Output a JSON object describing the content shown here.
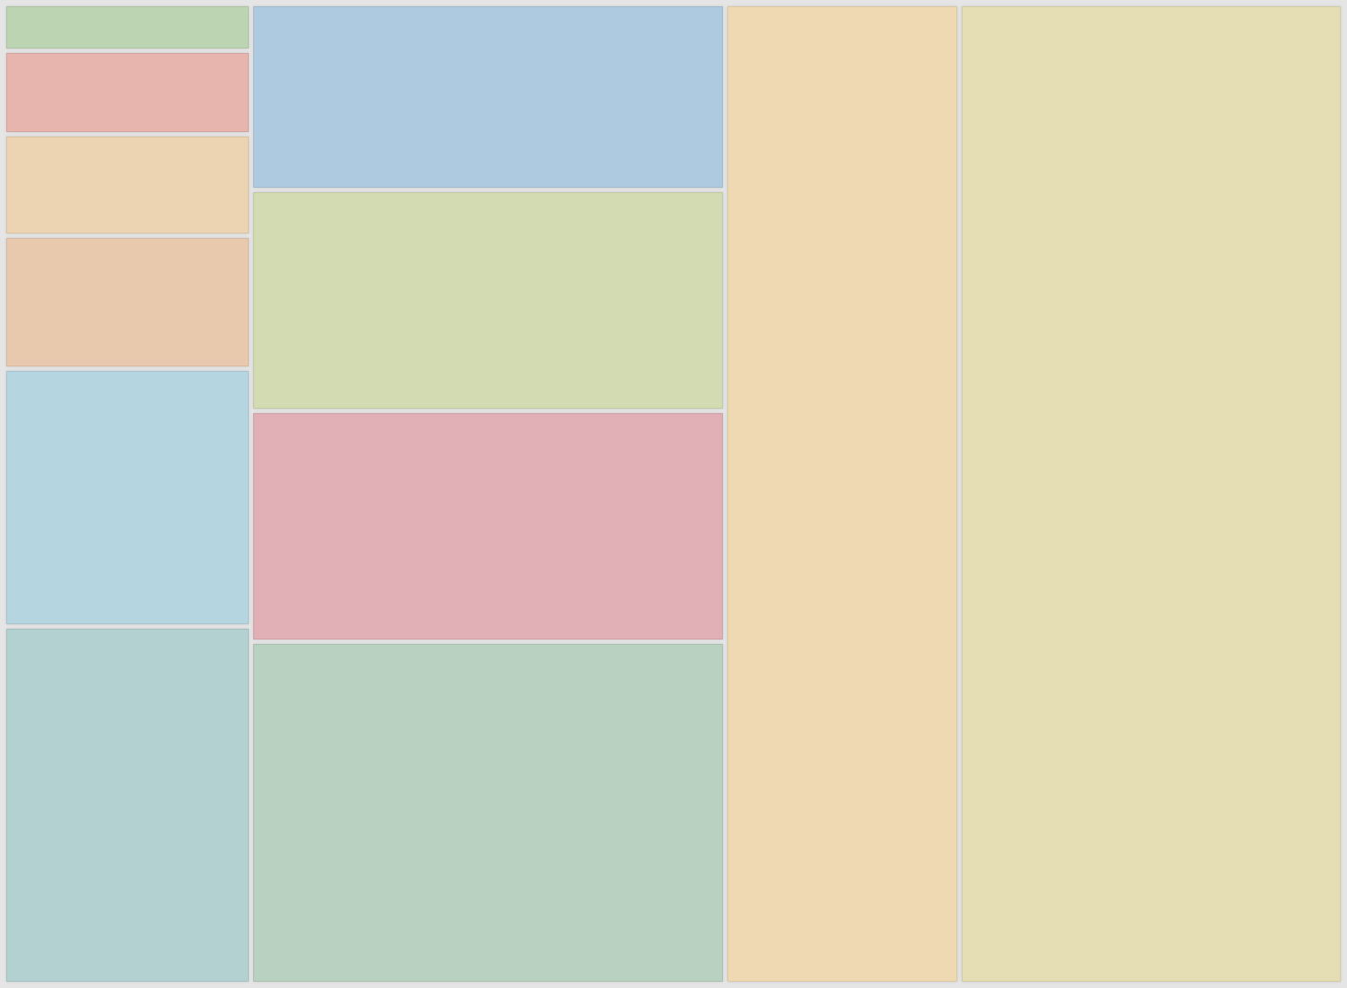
{
  "chart_data": {
    "type": "treemap",
    "title": "",
    "groups": [
      {
        "tiles": [
          {
            "value": 3.6,
            "color": "#bcd4b2"
          },
          {
            "value": 6.8,
            "color": "#e7b4ae"
          },
          {
            "value": 8.3,
            "color": "#ecd4b2"
          },
          {
            "value": 11.0,
            "color": "#e8c9ae"
          },
          {
            "value": 21.7,
            "color": "#b5d5e1"
          },
          {
            "value": 30.2,
            "color": "#b4d1d1"
          }
        ]
      },
      {
        "tiles": [
          {
            "value": 29.9,
            "color": "#aecae0"
          },
          {
            "value": 35.6,
            "color": "#d2dbb1"
          },
          {
            "value": 37.4,
            "color": "#e1afb6"
          },
          {
            "value": 55.6,
            "color": "#b8d1c0"
          }
        ]
      },
      {
        "tiles": [
          {
            "value": 77.4,
            "color": "#eed9b2"
          }
        ]
      },
      {
        "tiles": [
          {
            "value": 127.8,
            "color": "#e5deb4"
          }
        ]
      }
    ]
  }
}
